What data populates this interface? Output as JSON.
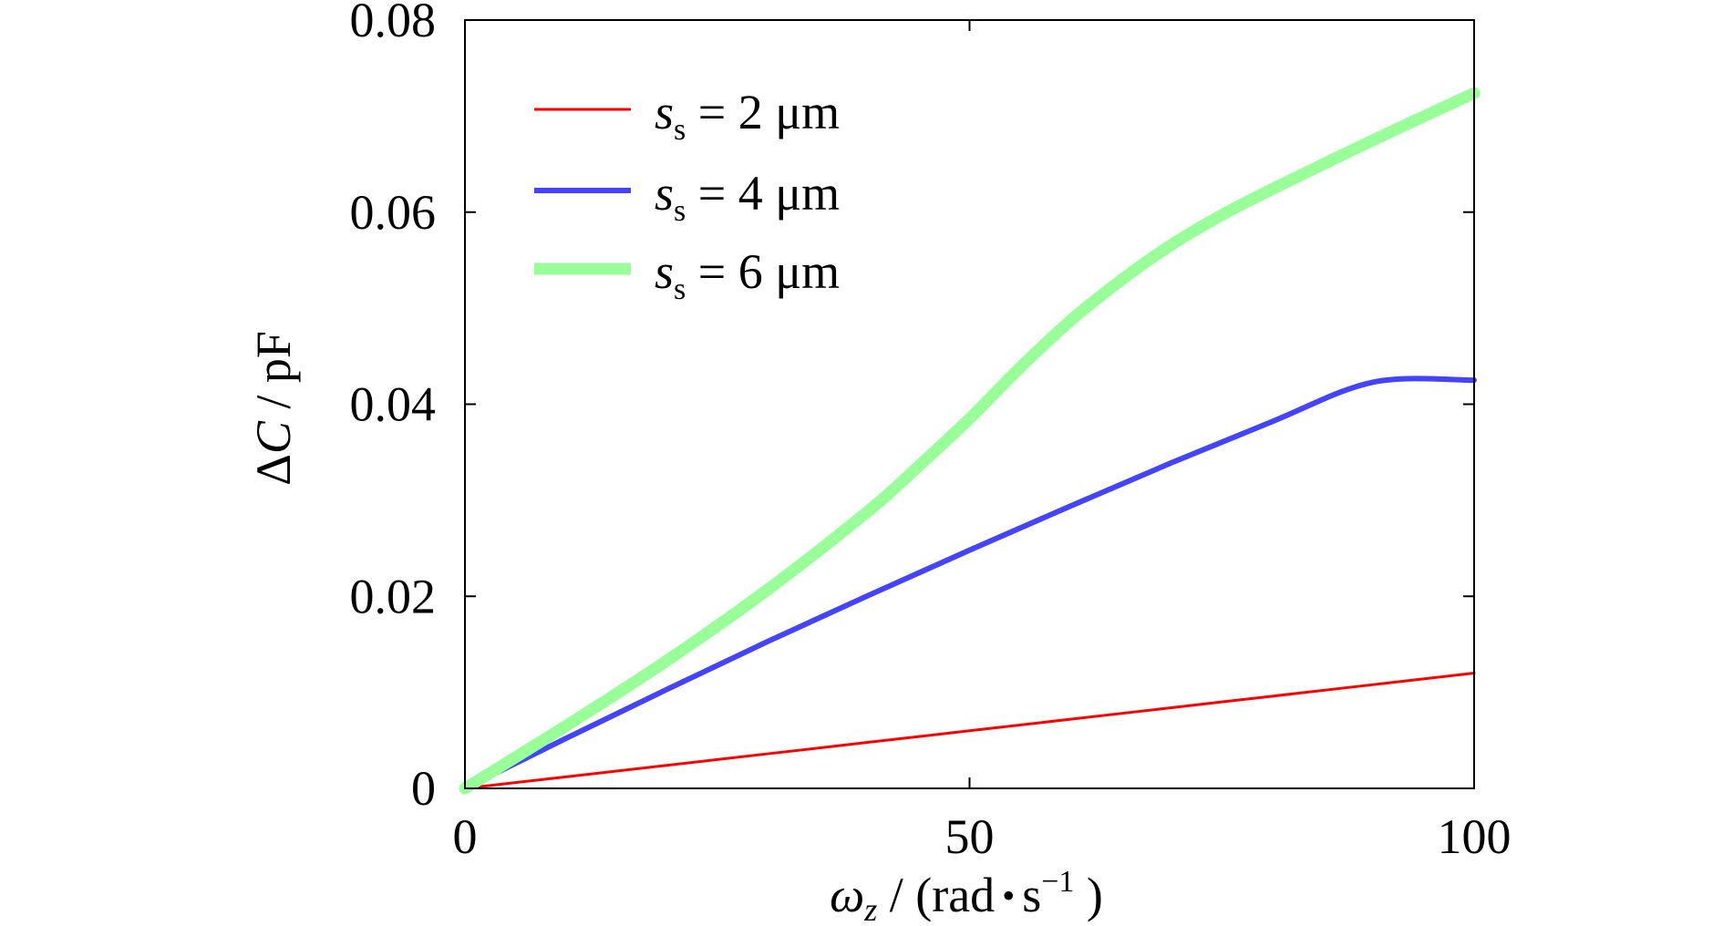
{
  "chart_data": {
    "type": "line",
    "title": "",
    "xlabel": "ω z / (rad • s^-1 )",
    "ylabel": "ΔC / pF",
    "xlim": [
      0,
      100
    ],
    "ylim": [
      0,
      0.08
    ],
    "xticks": [
      0,
      50,
      100
    ],
    "yticks": [
      0,
      0.02,
      0.04,
      0.06,
      0.08
    ],
    "xtick_labels": [
      "0",
      "50",
      "100"
    ],
    "ytick_labels": [
      "0",
      "0.02",
      "0.04",
      "0.06",
      "0.08"
    ],
    "grid": false,
    "legend_position": "top-left",
    "series": [
      {
        "name": "s s = 2 μm",
        "color": "#ff0000",
        "x": [
          0,
          10,
          20,
          30,
          40,
          50,
          60,
          70,
          80,
          90,
          100
        ],
        "y": [
          0,
          0.0012,
          0.0024,
          0.0036,
          0.0048,
          0.006,
          0.0072,
          0.0084,
          0.0096,
          0.0108,
          0.012
        ]
      },
      {
        "name": "s s = 4 μm",
        "color": "#4444ff",
        "x": [
          0,
          10,
          20,
          30,
          40,
          50,
          60,
          70,
          80,
          90,
          100
        ],
        "y": [
          0,
          0.0052,
          0.0103,
          0.0153,
          0.0201,
          0.0248,
          0.0294,
          0.0339,
          0.0382,
          0.0423,
          0.0425
        ]
      },
      {
        "name": "s s = 6 μm",
        "color": "#99ff99",
        "x": [
          0,
          10,
          20,
          30,
          40,
          45,
          50,
          55,
          60,
          65,
          70,
          75,
          80,
          90,
          100
        ],
        "y": [
          0,
          0.0065,
          0.0133,
          0.0207,
          0.0289,
          0.0336,
          0.0385,
          0.0438,
          0.0487,
          0.0529,
          0.0566,
          0.0597,
          0.0624,
          0.0675,
          0.0724
        ]
      }
    ]
  },
  "labels": {
    "y_title_delta": "Δ",
    "y_title_var": "C",
    "y_title_unit": " / pF",
    "x_title_var": "ω",
    "x_title_sub": "z",
    "x_title_mid": " / (rad",
    "x_title_dot": "•",
    "x_title_s": "s",
    "x_title_exp": "−1",
    "x_title_end": " )",
    "legend": [
      {
        "var": "s",
        "sub": "s",
        "rest": " = 2 μm"
      },
      {
        "var": "s",
        "sub": "s",
        "rest": " = 4 μm"
      },
      {
        "var": "s",
        "sub": "s",
        "rest": " = 6 μm"
      }
    ]
  }
}
